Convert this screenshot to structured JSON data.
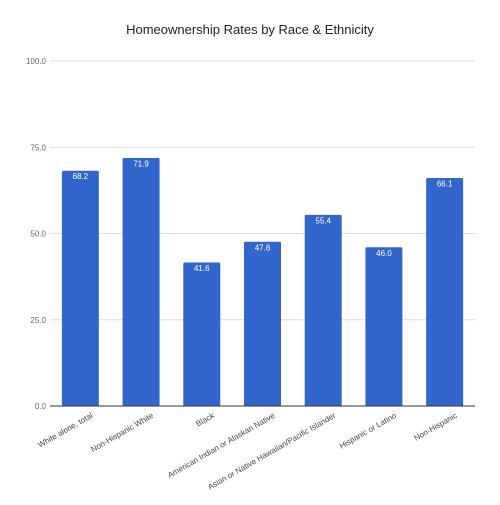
{
  "chart_data": {
    "type": "bar",
    "title": "Homeownership Rates by Race & Ethnicity",
    "xlabel": "",
    "ylabel": "",
    "categories": [
      "White alone, total",
      "Non-Hispanic White",
      "Black",
      "American Indian or Alaskan Native",
      "Asian or Native Hawaiian/Pacific Islander",
      "Hispanic or Latino",
      "Non-Hispanic"
    ],
    "values": [
      68.2,
      71.9,
      41.6,
      47.6,
      55.4,
      46.0,
      66.1
    ],
    "value_labels": [
      "68.2",
      "71.9",
      "41.6",
      "47.6",
      "55.4",
      "46.0",
      "66.1"
    ],
    "ylim": [
      0,
      100
    ],
    "yticks": [
      0,
      25,
      50,
      75,
      100
    ],
    "ytick_labels": [
      "0.0",
      "25.0",
      "50.0",
      "75.0",
      "100.0"
    ],
    "grid": true,
    "legend": "none",
    "bar_color": "#3366cc",
    "grid_color": "#dddddd",
    "axis_color": "#333333"
  }
}
